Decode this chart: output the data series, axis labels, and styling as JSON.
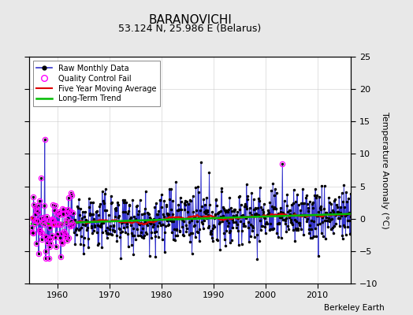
{
  "title": "BARANOVICHI",
  "subtitle": "53.124 N, 25.986 E (Belarus)",
  "ylabel": "Temperature Anomaly (°C)",
  "attribution": "Berkeley Earth",
  "xlim": [
    1954.5,
    2016.5
  ],
  "ylim": [
    -10,
    25
  ],
  "yticks": [
    -10,
    -5,
    0,
    5,
    10,
    15,
    20,
    25
  ],
  "xticks": [
    1960,
    1970,
    1980,
    1990,
    2000,
    2010
  ],
  "start_year": 1955,
  "end_year": 2016,
  "seed": 12345,
  "background_color": "#e8e8e8",
  "plot_bg_color": "#ffffff",
  "grid_color": "#cccccc",
  "line_color": "#3333cc",
  "ma_color": "#dd0000",
  "trend_color": "#00bb00",
  "qc_color": "#ff00ff",
  "title_fontsize": 11,
  "subtitle_fontsize": 9,
  "tick_labelsize": 8,
  "ylabel_fontsize": 8
}
